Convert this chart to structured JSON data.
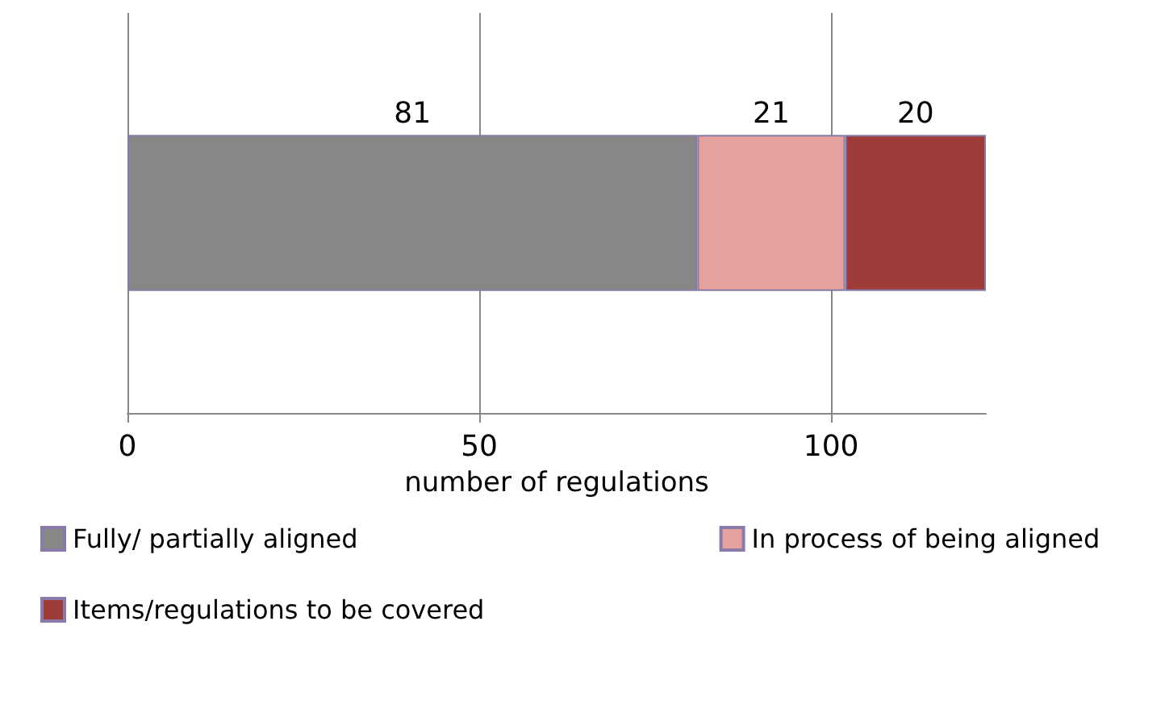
{
  "chart_data": {
    "type": "bar",
    "orientation": "horizontal",
    "stacked": true,
    "xlabel": "number of regulations",
    "categories": [
      null
    ],
    "series": [
      {
        "name": "Fully/ partially aligned",
        "color": "#878787",
        "values": [
          81
        ]
      },
      {
        "name": "In process of being aligned",
        "color": "#e6a09d",
        "values": [
          21
        ]
      },
      {
        "name": "Items/regulations to be covered",
        "color": "#9e3c3a",
        "values": [
          20
        ]
      }
    ],
    "xlim": [
      0,
      122
    ],
    "xticks": [
      0,
      50,
      100
    ],
    "grid": "x",
    "legend": "bottom",
    "data_labels": true
  }
}
